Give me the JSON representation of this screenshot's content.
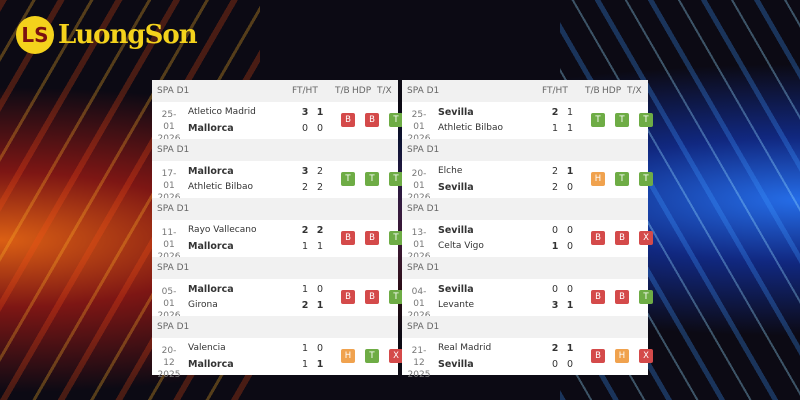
{
  "brand": {
    "logo_text": "LuongSon",
    "logo_mark": "LS"
  },
  "colors": {
    "B": "#d44a4a",
    "T": "#6eac45",
    "H": "#f0a24e",
    "X": "#d44a4a"
  },
  "columns": {
    "ft_ht": "FT/HT",
    "tb": "T/B",
    "hdp": "HDP",
    "tx": "T/X"
  },
  "panels": [
    {
      "matches": [
        {
          "league": "SPA D1",
          "date": [
            "25-01",
            "2026"
          ],
          "home": {
            "name": "Atletico Madrid",
            "bold": false,
            "ft": "3",
            "ht": "1",
            "ft_bold": true,
            "ht_bold": true
          },
          "away": {
            "name": "Mallorca",
            "bold": true,
            "ft": "0",
            "ht": "0",
            "ft_bold": false,
            "ht_bold": false
          },
          "tb": "B",
          "hdp": "B",
          "tx": "T"
        },
        {
          "league": "SPA D1",
          "date": [
            "17-01",
            "2026"
          ],
          "home": {
            "name": "Mallorca",
            "bold": true,
            "ft": "3",
            "ht": "2",
            "ft_bold": true,
            "ht_bold": false
          },
          "away": {
            "name": "Athletic Bilbao",
            "bold": false,
            "ft": "2",
            "ht": "2",
            "ft_bold": false,
            "ht_bold": false
          },
          "tb": "T",
          "hdp": "T",
          "tx": "T"
        },
        {
          "league": "SPA D1",
          "date": [
            "11-01",
            "2026"
          ],
          "home": {
            "name": "Rayo Vallecano",
            "bold": false,
            "ft": "2",
            "ht": "2",
            "ft_bold": true,
            "ht_bold": true
          },
          "away": {
            "name": "Mallorca",
            "bold": true,
            "ft": "1",
            "ht": "1",
            "ft_bold": false,
            "ht_bold": false
          },
          "tb": "B",
          "hdp": "B",
          "tx": "T"
        },
        {
          "league": "SPA D1",
          "date": [
            "05-01",
            "2026"
          ],
          "home": {
            "name": "Mallorca",
            "bold": true,
            "ft": "1",
            "ht": "0",
            "ft_bold": false,
            "ht_bold": false
          },
          "away": {
            "name": "Girona",
            "bold": false,
            "ft": "2",
            "ht": "1",
            "ft_bold": true,
            "ht_bold": true
          },
          "tb": "B",
          "hdp": "B",
          "tx": "T"
        },
        {
          "league": "SPA D1",
          "date": [
            "20-12",
            "2025"
          ],
          "home": {
            "name": "Valencia",
            "bold": false,
            "ft": "1",
            "ht": "0",
            "ft_bold": false,
            "ht_bold": false
          },
          "away": {
            "name": "Mallorca",
            "bold": true,
            "ft": "1",
            "ht": "1",
            "ft_bold": false,
            "ht_bold": true
          },
          "tb": "H",
          "hdp": "T",
          "tx": "X"
        }
      ]
    },
    {
      "matches": [
        {
          "league": "SPA D1",
          "date": [
            "25-01",
            "2026"
          ],
          "home": {
            "name": "Sevilla",
            "bold": true,
            "ft": "2",
            "ht": "1",
            "ft_bold": true,
            "ht_bold": false
          },
          "away": {
            "name": "Athletic Bilbao",
            "bold": false,
            "ft": "1",
            "ht": "1",
            "ft_bold": false,
            "ht_bold": false
          },
          "tb": "T",
          "hdp": "T",
          "tx": "T"
        },
        {
          "league": "SPA D1",
          "date": [
            "20-01",
            "2026"
          ],
          "home": {
            "name": "Elche",
            "bold": false,
            "ft": "2",
            "ht": "1",
            "ft_bold": false,
            "ht_bold": true
          },
          "away": {
            "name": "Sevilla",
            "bold": true,
            "ft": "2",
            "ht": "0",
            "ft_bold": false,
            "ht_bold": false
          },
          "tb": "H",
          "hdp": "T",
          "tx": "T"
        },
        {
          "league": "SPA D1",
          "date": [
            "13-01",
            "2026"
          ],
          "home": {
            "name": "Sevilla",
            "bold": true,
            "ft": "0",
            "ht": "0",
            "ft_bold": false,
            "ht_bold": false
          },
          "away": {
            "name": "Celta Vigo",
            "bold": false,
            "ft": "1",
            "ht": "0",
            "ft_bold": true,
            "ht_bold": false
          },
          "tb": "B",
          "hdp": "B",
          "tx": "X"
        },
        {
          "league": "SPA D1",
          "date": [
            "04-01",
            "2026"
          ],
          "home": {
            "name": "Sevilla",
            "bold": true,
            "ft": "0",
            "ht": "0",
            "ft_bold": false,
            "ht_bold": false
          },
          "away": {
            "name": "Levante",
            "bold": false,
            "ft": "3",
            "ht": "1",
            "ft_bold": true,
            "ht_bold": true
          },
          "tb": "B",
          "hdp": "B",
          "tx": "T"
        },
        {
          "league": "SPA D1",
          "date": [
            "21-12",
            "2025"
          ],
          "home": {
            "name": "Real Madrid",
            "bold": false,
            "ft": "2",
            "ht": "1",
            "ft_bold": true,
            "ht_bold": true
          },
          "away": {
            "name": "Sevilla",
            "bold": true,
            "ft": "0",
            "ht": "0",
            "ft_bold": false,
            "ht_bold": false
          },
          "tb": "B",
          "hdp": "H",
          "tx": "X"
        }
      ]
    }
  ]
}
